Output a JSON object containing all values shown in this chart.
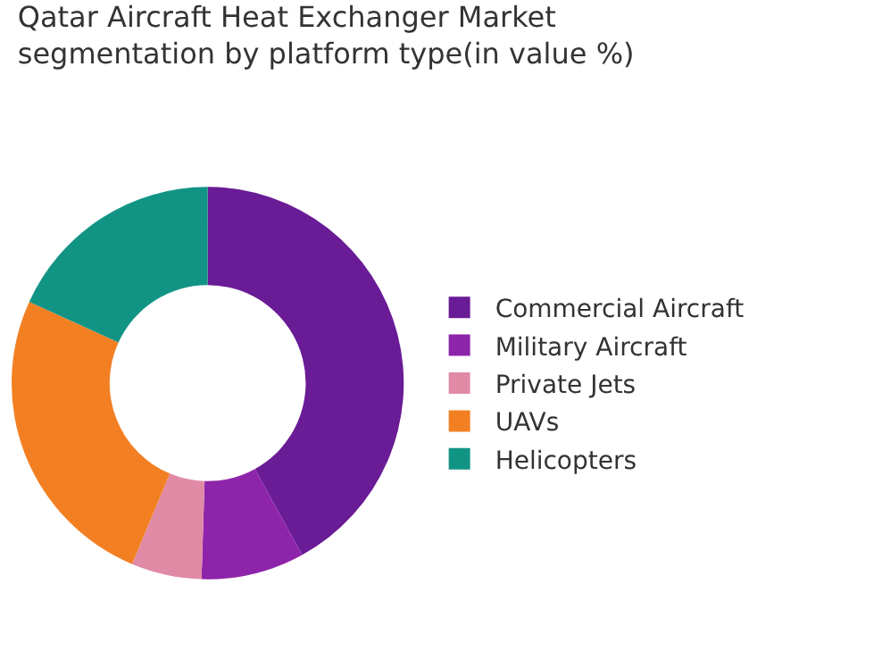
{
  "chart_data": {
    "type": "donut",
    "title": "Qatar Aircraft Heat Exchanger Market segmentation by platform type(in value %)",
    "categories": [
      "Commercial Aircraft",
      "Military Aircraft",
      "Private Jets",
      "UAVs",
      "Helicopters"
    ],
    "values": [
      42,
      8.5,
      5.8,
      25.5,
      18.2
    ],
    "colors": [
      "#6a1b96",
      "#8e24aa",
      "#e08aa6",
      "#f28023",
      "#129485"
    ],
    "legend": "right"
  }
}
